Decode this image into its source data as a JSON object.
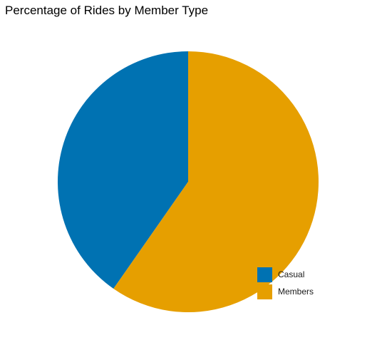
{
  "chart_data": {
    "type": "pie",
    "title": "Percentage of Rides by Member Type",
    "categories": [
      "Casual",
      "Members"
    ],
    "values": [
      40.3,
      59.7
    ],
    "colors": [
      "#0072B2",
      "#E69F00"
    ],
    "legend": "bottom-right, inside",
    "start": "12 o'clock",
    "direction": "counter-clockwise"
  }
}
